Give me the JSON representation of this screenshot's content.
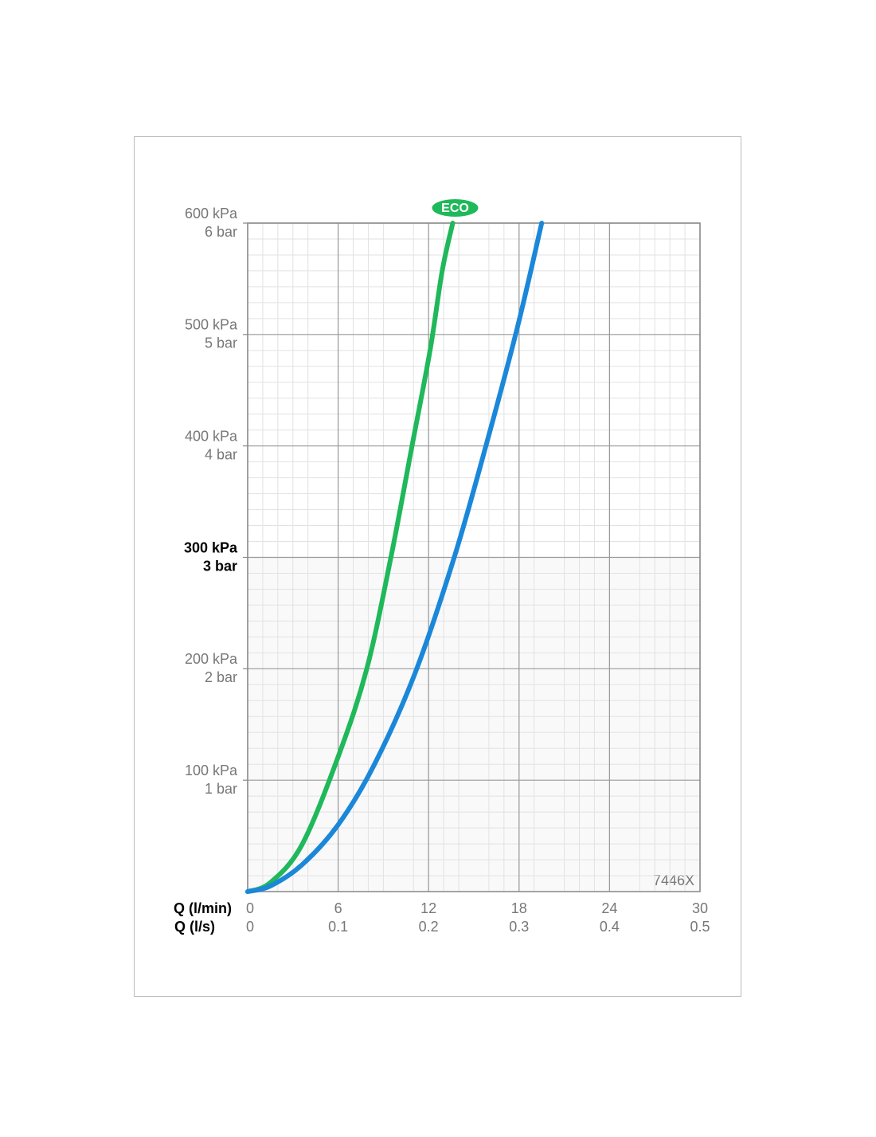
{
  "chart_data": {
    "type": "line",
    "xlabel": "Q (l/min)",
    "x2label": "Q (l/s)",
    "xlim": [
      0,
      30
    ],
    "xticks": [
      0,
      6,
      12,
      18,
      24,
      30
    ],
    "x2lim": [
      0,
      0.5
    ],
    "x2ticks": [
      0,
      0.1,
      0.2,
      0.3,
      0.4,
      0.5
    ],
    "ylim": [
      0,
      600
    ],
    "yticks": [
      {
        "value": 100,
        "label": "100 kPa"
      },
      {
        "value": 200,
        "label": "200 kPa"
      },
      {
        "value": 300,
        "label": "300 kPa"
      },
      {
        "value": 400,
        "label": "400 kPa"
      },
      {
        "value": 500,
        "label": "500 kPa"
      },
      {
        "value": 600,
        "label": "600 kPa"
      }
    ],
    "y2lim": [
      0,
      6
    ],
    "y2ticks": [
      {
        "value": 1,
        "label": "1 bar"
      },
      {
        "value": 2,
        "label": "2 bar"
      },
      {
        "value": 3,
        "label": "3 bar"
      },
      {
        "value": 4,
        "label": "4 bar"
      },
      {
        "value": 5,
        "label": "5 bar"
      },
      {
        "value": 6,
        "label": "6 bar"
      }
    ],
    "bold_y": 300,
    "grid": true,
    "minor_grid": true,
    "annotation": "7446X",
    "series": [
      {
        "name": "ECO",
        "color": "#1fb85a",
        "x": [
          0,
          1.5,
          3.6,
          6,
          7.9,
          9.5,
          10.9,
          12.1,
          12.9,
          13.6
        ],
        "values": [
          0,
          8,
          42,
          121,
          200,
          300,
          400,
          486,
          557,
          600
        ]
      },
      {
        "color": "#1b87d9",
        "x": [
          0,
          1.5,
          3.6,
          6,
          8.4,
          11.1,
          13.7,
          15.8,
          17.9,
          19.5
        ],
        "values": [
          0,
          5,
          24,
          60,
          114,
          196,
          300,
          400,
          507,
          600
        ]
      }
    ]
  }
}
